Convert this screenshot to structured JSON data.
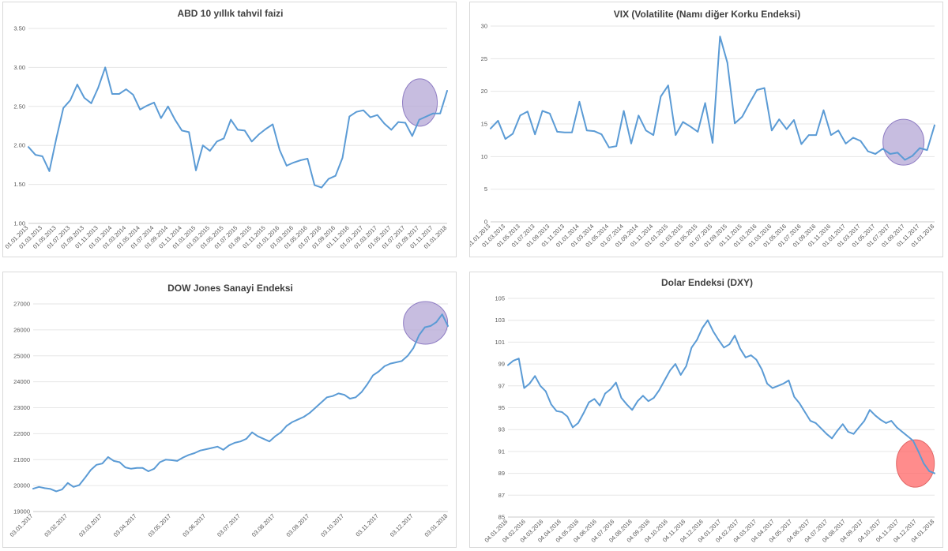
{
  "chart_data": [
    {
      "type": "line",
      "title": "ABD 10 yıllık tahvil faizi",
      "xlabel": "",
      "ylabel": "",
      "ylim": [
        1.0,
        3.5
      ],
      "yticks": [
        "3.50",
        "3.00",
        "2.50",
        "2.00",
        "1.50",
        "1.00"
      ],
      "grid": true,
      "line_color": "#5b9bd5",
      "highlight_color": "#b4a7d6",
      "highlight_stroke": "#8e7cc3",
      "highlight_x_fraction": 0.935,
      "highlight_y": 2.55,
      "x_tick_labels": [
        "01.01.2013",
        "01.03.2013",
        "01.05.2013",
        "01.07.2013",
        "01.09.2013",
        "01.11.2013",
        "01.01.2014",
        "01.03.2014",
        "01.05.2014",
        "01.07.2014",
        "01.09.2014",
        "01.11.2014",
        "01.01.2015",
        "01.03.2015",
        "01.05.2015",
        "01.07.2015",
        "01.09.2015",
        "01.11.2015",
        "01.01.2016",
        "01.03.2016",
        "01.05.2016",
        "01.07.2016",
        "01.09.2016",
        "01.11.2016",
        "01.01.2017",
        "01.03.2017",
        "01.05.2017",
        "01.07.2017",
        "01.09.2017",
        "01.11.2017",
        "01.01.2018"
      ],
      "values": [
        1.98,
        1.88,
        1.86,
        1.67,
        2.09,
        2.48,
        2.58,
        2.78,
        2.61,
        2.54,
        2.74,
        3.0,
        2.66,
        2.66,
        2.72,
        2.65,
        2.46,
        2.51,
        2.55,
        2.35,
        2.5,
        2.33,
        2.19,
        2.17,
        1.68,
        2.0,
        1.93,
        2.05,
        2.09,
        2.33,
        2.2,
        2.19,
        2.05,
        2.14,
        2.21,
        2.27,
        1.94,
        1.74,
        1.78,
        1.81,
        1.83,
        1.49,
        1.46,
        1.57,
        1.61,
        1.84,
        2.37,
        2.43,
        2.45,
        2.36,
        2.39,
        2.28,
        2.2,
        2.3,
        2.29,
        2.12,
        2.33,
        2.37,
        2.41,
        2.41,
        2.7
      ]
    },
    {
      "type": "line",
      "title": "VIX (Volatilite (Namı diğer Korku Endeksi)",
      "xlabel": "",
      "ylabel": "",
      "ylim": [
        0,
        30
      ],
      "yticks": [
        "30",
        "25",
        "20",
        "15",
        "10",
        "5",
        "0"
      ],
      "grid": true,
      "line_color": "#5b9bd5",
      "highlight_color": "#b4a7d6",
      "highlight_stroke": "#8e7cc3",
      "highlight_x_fraction": 0.93,
      "highlight_y": 12.2,
      "x_tick_labels": [
        "01.01.2013",
        "01.03.2013",
        "01.05.2013",
        "01.07.2013",
        "01.09.2013",
        "01.11.2013",
        "01.01.2014",
        "01.03.2014",
        "01.05.2014",
        "01.07.2014",
        "01.09.2014",
        "01.11.2014",
        "01.01.2015",
        "01.03.2015",
        "01.05.2015",
        "01.07.2015",
        "01.09.2015",
        "01.11.2015",
        "01.01.2016",
        "01.03.2016",
        "01.05.2016",
        "01.07.2016",
        "01.09.2016",
        "01.11.2016",
        "01.01.2017",
        "01.03.2017",
        "01.05.2017",
        "01.07.2017",
        "01.09.2017",
        "01.11.2017",
        "01.01.2018"
      ],
      "values": [
        14.3,
        15.5,
        12.7,
        13.5,
        16.3,
        16.9,
        13.4,
        17.0,
        16.6,
        13.8,
        13.7,
        13.7,
        18.4,
        14.0,
        13.9,
        13.4,
        11.4,
        11.6,
        17.0,
        12.0,
        16.3,
        14.0,
        13.3,
        19.2,
        20.9,
        13.3,
        15.3,
        14.6,
        13.8,
        18.2,
        12.1,
        28.4,
        24.4,
        15.1,
        16.1,
        18.2,
        20.2,
        20.5,
        14.0,
        15.7,
        14.2,
        15.6,
        11.9,
        13.3,
        13.3,
        17.1,
        13.3,
        14.0,
        11.99,
        12.9,
        12.4,
        10.8,
        10.4,
        11.2,
        10.4,
        10.6,
        9.5,
        10.1,
        11.3,
        11.0,
        14.8
      ]
    },
    {
      "type": "line",
      "title": "DOW Jones Sanayi Endeksi",
      "xlabel": "",
      "ylabel": "",
      "ylim": [
        19000,
        27000
      ],
      "yticks": [
        "27000",
        "26000",
        "25000",
        "24000",
        "23000",
        "22000",
        "21000",
        "20000",
        "19000"
      ],
      "grid": true,
      "line_color": "#5b9bd5",
      "highlight_color": "#b4a7d6",
      "highlight_stroke": "#8e7cc3",
      "highlight_x_fraction": 0.946,
      "highlight_y": 26270,
      "x_tick_labels": [
        "03.01.2017",
        "03.02.2017",
        "03.03.2017",
        "03.04.2017",
        "03.05.2017",
        "03.06.2017",
        "03.07.2017",
        "03.08.2017",
        "03.09.2017",
        "03.10.2017",
        "03.11.2017",
        "03.12.2017",
        "03.01.2018"
      ],
      "values": [
        19880,
        19950,
        19900,
        19870,
        19780,
        19850,
        20100,
        19950,
        20020,
        20300,
        20600,
        20800,
        20850,
        21100,
        20950,
        20900,
        20700,
        20650,
        20680,
        20680,
        20550,
        20650,
        20900,
        21000,
        20980,
        20950,
        21080,
        21180,
        21250,
        21350,
        21400,
        21450,
        21500,
        21380,
        21550,
        21650,
        21700,
        21800,
        22050,
        21900,
        21800,
        21700,
        21900,
        22050,
        22300,
        22450,
        22550,
        22650,
        22800,
        23000,
        23200,
        23400,
        23450,
        23550,
        23500,
        23350,
        23400,
        23600,
        23900,
        24250,
        24400,
        24600,
        24700,
        24750,
        24800,
        25000,
        25300,
        25800,
        26100,
        26150,
        26300,
        26600,
        26150
      ]
    },
    {
      "type": "line",
      "title": "Dolar Endeksi (DXY)",
      "xlabel": "",
      "ylabel": "",
      "ylim": [
        85,
        105
      ],
      "yticks": [
        "105",
        "103",
        "101",
        "99",
        "97",
        "95",
        "93",
        "91",
        "89",
        "87",
        "85"
      ],
      "grid": true,
      "line_color": "#5b9bd5",
      "highlight_color": "#ff6666",
      "highlight_stroke": "#e06666",
      "highlight_x_fraction": 0.955,
      "highlight_y": 89.9,
      "x_tick_labels": [
        "04.01.2016",
        "04.02.2016",
        "04.03.2016",
        "04.04.2016",
        "04.05.2016",
        "04.06.2016",
        "04.07.2016",
        "04.08.2016",
        "04.09.2016",
        "04.10.2016",
        "04.11.2016",
        "04.12.2016",
        "04.01.2017",
        "04.02.2017",
        "04.03.2017",
        "04.04.2017",
        "04.05.2017",
        "04.06.2017",
        "04.07.2017",
        "04.08.2017",
        "04.09.2017",
        "04.10.2017",
        "04.11.2017",
        "04.12.2017",
        "04.01.2018"
      ],
      "values": [
        98.9,
        99.3,
        99.5,
        96.8,
        97.2,
        97.9,
        97.0,
        96.5,
        95.3,
        94.7,
        94.6,
        94.2,
        93.2,
        93.6,
        94.5,
        95.5,
        95.8,
        95.2,
        96.3,
        96.7,
        97.3,
        95.9,
        95.3,
        94.8,
        95.6,
        96.1,
        95.6,
        95.9,
        96.6,
        97.5,
        98.4,
        99.0,
        98.0,
        98.8,
        100.5,
        101.2,
        102.3,
        103.0,
        102.0,
        101.2,
        100.5,
        100.8,
        101.6,
        100.4,
        99.6,
        99.8,
        99.4,
        98.5,
        97.2,
        96.8,
        97.0,
        97.2,
        97.5,
        96.0,
        95.4,
        94.6,
        93.8,
        93.6,
        93.1,
        92.6,
        92.2,
        92.9,
        93.5,
        92.8,
        92.6,
        93.2,
        93.8,
        94.8,
        94.3,
        93.9,
        93.6,
        93.8,
        93.2,
        92.8,
        92.4,
        92.0,
        91.0,
        89.9,
        89.2,
        89.0
      ]
    }
  ]
}
